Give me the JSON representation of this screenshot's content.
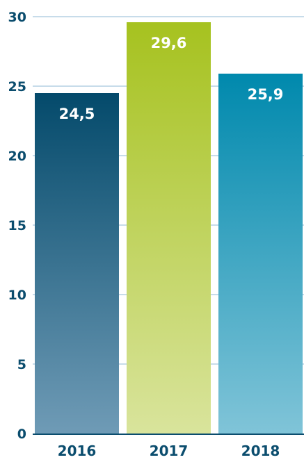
{
  "chart_data": {
    "type": "bar",
    "categories": [
      "2016",
      "2017",
      "2018"
    ],
    "values": [
      24.5,
      29.6,
      25.9
    ],
    "data_labels": [
      "24,5",
      "29,6",
      "25,9"
    ],
    "title": "",
    "xlabel": "",
    "ylabel": "",
    "ylim": [
      0,
      30
    ],
    "y_ticks": [
      0,
      5,
      10,
      15,
      20,
      25,
      30
    ],
    "grid": true,
    "legend": "none",
    "colors": {
      "bar_2016": {
        "top": "#044a6b",
        "bottom": "#6f9bb6"
      },
      "bar_2017": {
        "top": "#a6c21f",
        "bottom": "#d9e49c"
      },
      "bar_2018": {
        "top": "#0089ad",
        "bottom": "#80c4d8"
      },
      "axis_text": "#0b4d6e",
      "gridline": "#6aa3c6"
    }
  }
}
